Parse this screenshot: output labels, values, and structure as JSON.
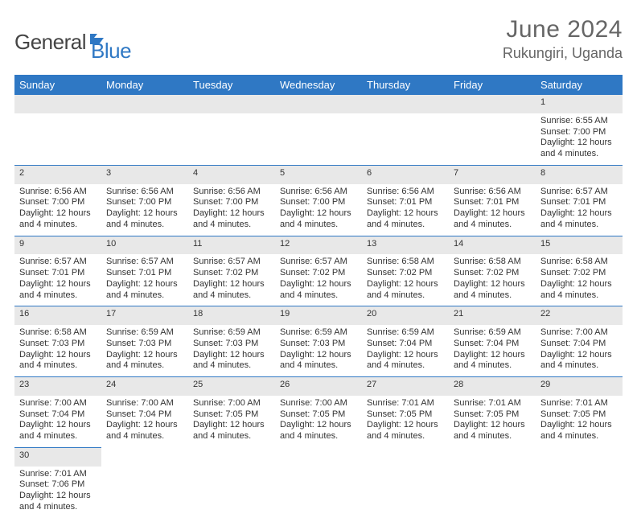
{
  "brand": {
    "text1": "General",
    "text2": "Blue"
  },
  "title": {
    "month": "June 2024",
    "location": "Rukungiri, Uganda"
  },
  "colors": {
    "header_bg": "#2f78c4",
    "header_fg": "#ffffff",
    "daynum_bg": "#e8e8e8",
    "row_border": "#2f78c4",
    "page_bg": "#ffffff",
    "text": "#333333",
    "title_color": "#666666"
  },
  "day_headers": [
    "Sunday",
    "Monday",
    "Tuesday",
    "Wednesday",
    "Thursday",
    "Friday",
    "Saturday"
  ],
  "weeks": [
    [
      null,
      null,
      null,
      null,
      null,
      null,
      {
        "n": "1",
        "sr": "Sunrise: 6:55 AM",
        "ss": "Sunset: 7:00 PM",
        "d1": "Daylight: 12 hours",
        "d2": "and 4 minutes."
      }
    ],
    [
      {
        "n": "2",
        "sr": "Sunrise: 6:56 AM",
        "ss": "Sunset: 7:00 PM",
        "d1": "Daylight: 12 hours",
        "d2": "and 4 minutes."
      },
      {
        "n": "3",
        "sr": "Sunrise: 6:56 AM",
        "ss": "Sunset: 7:00 PM",
        "d1": "Daylight: 12 hours",
        "d2": "and 4 minutes."
      },
      {
        "n": "4",
        "sr": "Sunrise: 6:56 AM",
        "ss": "Sunset: 7:00 PM",
        "d1": "Daylight: 12 hours",
        "d2": "and 4 minutes."
      },
      {
        "n": "5",
        "sr": "Sunrise: 6:56 AM",
        "ss": "Sunset: 7:00 PM",
        "d1": "Daylight: 12 hours",
        "d2": "and 4 minutes."
      },
      {
        "n": "6",
        "sr": "Sunrise: 6:56 AM",
        "ss": "Sunset: 7:01 PM",
        "d1": "Daylight: 12 hours",
        "d2": "and 4 minutes."
      },
      {
        "n": "7",
        "sr": "Sunrise: 6:56 AM",
        "ss": "Sunset: 7:01 PM",
        "d1": "Daylight: 12 hours",
        "d2": "and 4 minutes."
      },
      {
        "n": "8",
        "sr": "Sunrise: 6:57 AM",
        "ss": "Sunset: 7:01 PM",
        "d1": "Daylight: 12 hours",
        "d2": "and 4 minutes."
      }
    ],
    [
      {
        "n": "9",
        "sr": "Sunrise: 6:57 AM",
        "ss": "Sunset: 7:01 PM",
        "d1": "Daylight: 12 hours",
        "d2": "and 4 minutes."
      },
      {
        "n": "10",
        "sr": "Sunrise: 6:57 AM",
        "ss": "Sunset: 7:01 PM",
        "d1": "Daylight: 12 hours",
        "d2": "and 4 minutes."
      },
      {
        "n": "11",
        "sr": "Sunrise: 6:57 AM",
        "ss": "Sunset: 7:02 PM",
        "d1": "Daylight: 12 hours",
        "d2": "and 4 minutes."
      },
      {
        "n": "12",
        "sr": "Sunrise: 6:57 AM",
        "ss": "Sunset: 7:02 PM",
        "d1": "Daylight: 12 hours",
        "d2": "and 4 minutes."
      },
      {
        "n": "13",
        "sr": "Sunrise: 6:58 AM",
        "ss": "Sunset: 7:02 PM",
        "d1": "Daylight: 12 hours",
        "d2": "and 4 minutes."
      },
      {
        "n": "14",
        "sr": "Sunrise: 6:58 AM",
        "ss": "Sunset: 7:02 PM",
        "d1": "Daylight: 12 hours",
        "d2": "and 4 minutes."
      },
      {
        "n": "15",
        "sr": "Sunrise: 6:58 AM",
        "ss": "Sunset: 7:02 PM",
        "d1": "Daylight: 12 hours",
        "d2": "and 4 minutes."
      }
    ],
    [
      {
        "n": "16",
        "sr": "Sunrise: 6:58 AM",
        "ss": "Sunset: 7:03 PM",
        "d1": "Daylight: 12 hours",
        "d2": "and 4 minutes."
      },
      {
        "n": "17",
        "sr": "Sunrise: 6:59 AM",
        "ss": "Sunset: 7:03 PM",
        "d1": "Daylight: 12 hours",
        "d2": "and 4 minutes."
      },
      {
        "n": "18",
        "sr": "Sunrise: 6:59 AM",
        "ss": "Sunset: 7:03 PM",
        "d1": "Daylight: 12 hours",
        "d2": "and 4 minutes."
      },
      {
        "n": "19",
        "sr": "Sunrise: 6:59 AM",
        "ss": "Sunset: 7:03 PM",
        "d1": "Daylight: 12 hours",
        "d2": "and 4 minutes."
      },
      {
        "n": "20",
        "sr": "Sunrise: 6:59 AM",
        "ss": "Sunset: 7:04 PM",
        "d1": "Daylight: 12 hours",
        "d2": "and 4 minutes."
      },
      {
        "n": "21",
        "sr": "Sunrise: 6:59 AM",
        "ss": "Sunset: 7:04 PM",
        "d1": "Daylight: 12 hours",
        "d2": "and 4 minutes."
      },
      {
        "n": "22",
        "sr": "Sunrise: 7:00 AM",
        "ss": "Sunset: 7:04 PM",
        "d1": "Daylight: 12 hours",
        "d2": "and 4 minutes."
      }
    ],
    [
      {
        "n": "23",
        "sr": "Sunrise: 7:00 AM",
        "ss": "Sunset: 7:04 PM",
        "d1": "Daylight: 12 hours",
        "d2": "and 4 minutes."
      },
      {
        "n": "24",
        "sr": "Sunrise: 7:00 AM",
        "ss": "Sunset: 7:04 PM",
        "d1": "Daylight: 12 hours",
        "d2": "and 4 minutes."
      },
      {
        "n": "25",
        "sr": "Sunrise: 7:00 AM",
        "ss": "Sunset: 7:05 PM",
        "d1": "Daylight: 12 hours",
        "d2": "and 4 minutes."
      },
      {
        "n": "26",
        "sr": "Sunrise: 7:00 AM",
        "ss": "Sunset: 7:05 PM",
        "d1": "Daylight: 12 hours",
        "d2": "and 4 minutes."
      },
      {
        "n": "27",
        "sr": "Sunrise: 7:01 AM",
        "ss": "Sunset: 7:05 PM",
        "d1": "Daylight: 12 hours",
        "d2": "and 4 minutes."
      },
      {
        "n": "28",
        "sr": "Sunrise: 7:01 AM",
        "ss": "Sunset: 7:05 PM",
        "d1": "Daylight: 12 hours",
        "d2": "and 4 minutes."
      },
      {
        "n": "29",
        "sr": "Sunrise: 7:01 AM",
        "ss": "Sunset: 7:05 PM",
        "d1": "Daylight: 12 hours",
        "d2": "and 4 minutes."
      }
    ],
    [
      {
        "n": "30",
        "sr": "Sunrise: 7:01 AM",
        "ss": "Sunset: 7:06 PM",
        "d1": "Daylight: 12 hours",
        "d2": "and 4 minutes."
      },
      null,
      null,
      null,
      null,
      null,
      null
    ]
  ]
}
